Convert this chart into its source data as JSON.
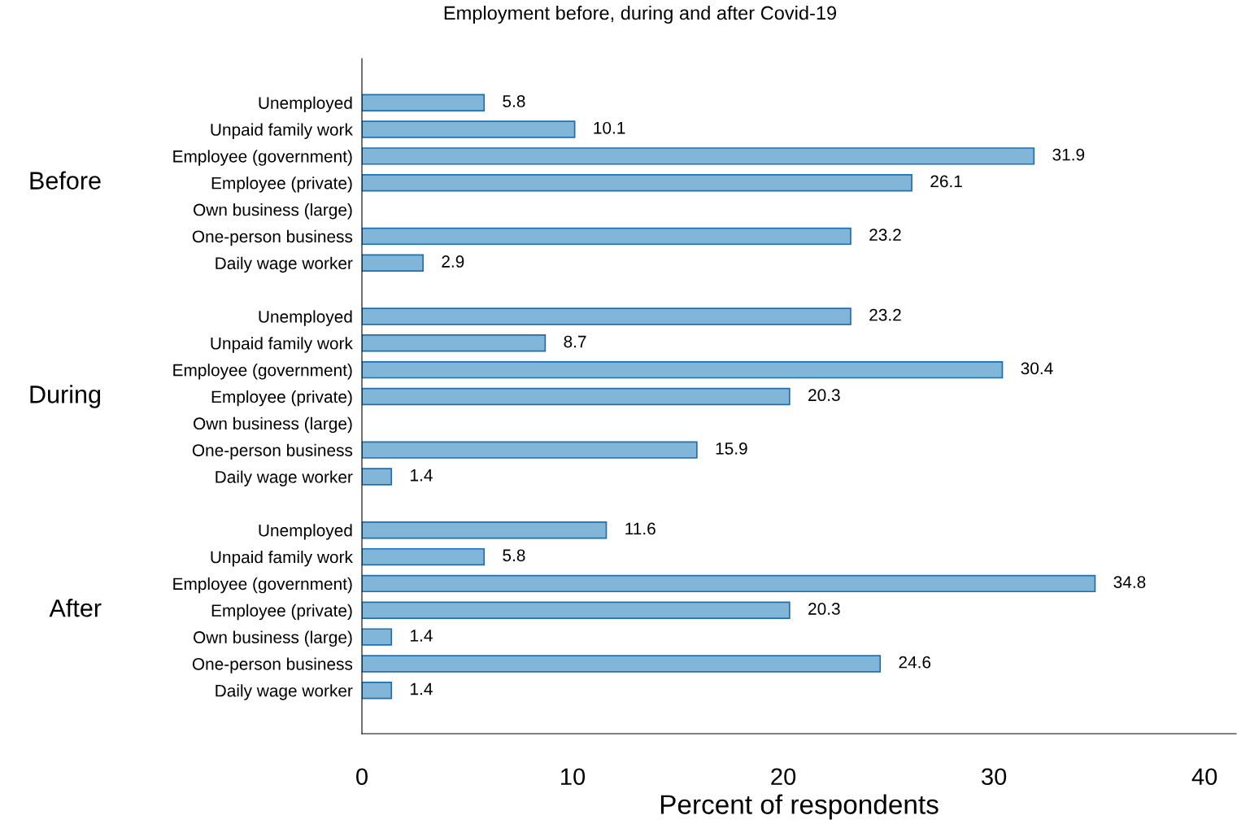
{
  "chart_data": {
    "type": "bar",
    "orientation": "horizontal",
    "title": "Employment before, during and after Covid-19",
    "xlabel": "Percent of respondents",
    "categories": [
      "Unemployed",
      "Unpaid family work",
      "Employee (government)",
      "Employee (private)",
      "Own business (large)",
      "One-person business",
      "Daily wage worker",
      null,
      "Unemployed",
      "Unpaid family work",
      "Employee (government)",
      "Employee (private)",
      "Own business (large)",
      "One-person business",
      "Daily wage worker",
      null,
      "Unemployed",
      "Unpaid family work",
      "Employee (government)",
      "Employee (private)",
      "Own business (large)",
      "One-person business",
      "Daily wage worker"
    ],
    "values": [
      5.8,
      10.1,
      31.9,
      26.1,
      null,
      23.2,
      2.9,
      null,
      23.2,
      8.7,
      30.4,
      20.3,
      null,
      15.9,
      1.4,
      null,
      11.6,
      5.8,
      34.8,
      20.3,
      1.4,
      24.6,
      1.4
    ],
    "color": "#82b6d9",
    "annotations": [
      "Before",
      "During",
      "After"
    ],
    "xlim": [
      0,
      41.5
    ],
    "xticks": [
      0,
      10,
      20,
      30,
      40
    ],
    "data_labels": true,
    "grid": false,
    "legend": false
  }
}
